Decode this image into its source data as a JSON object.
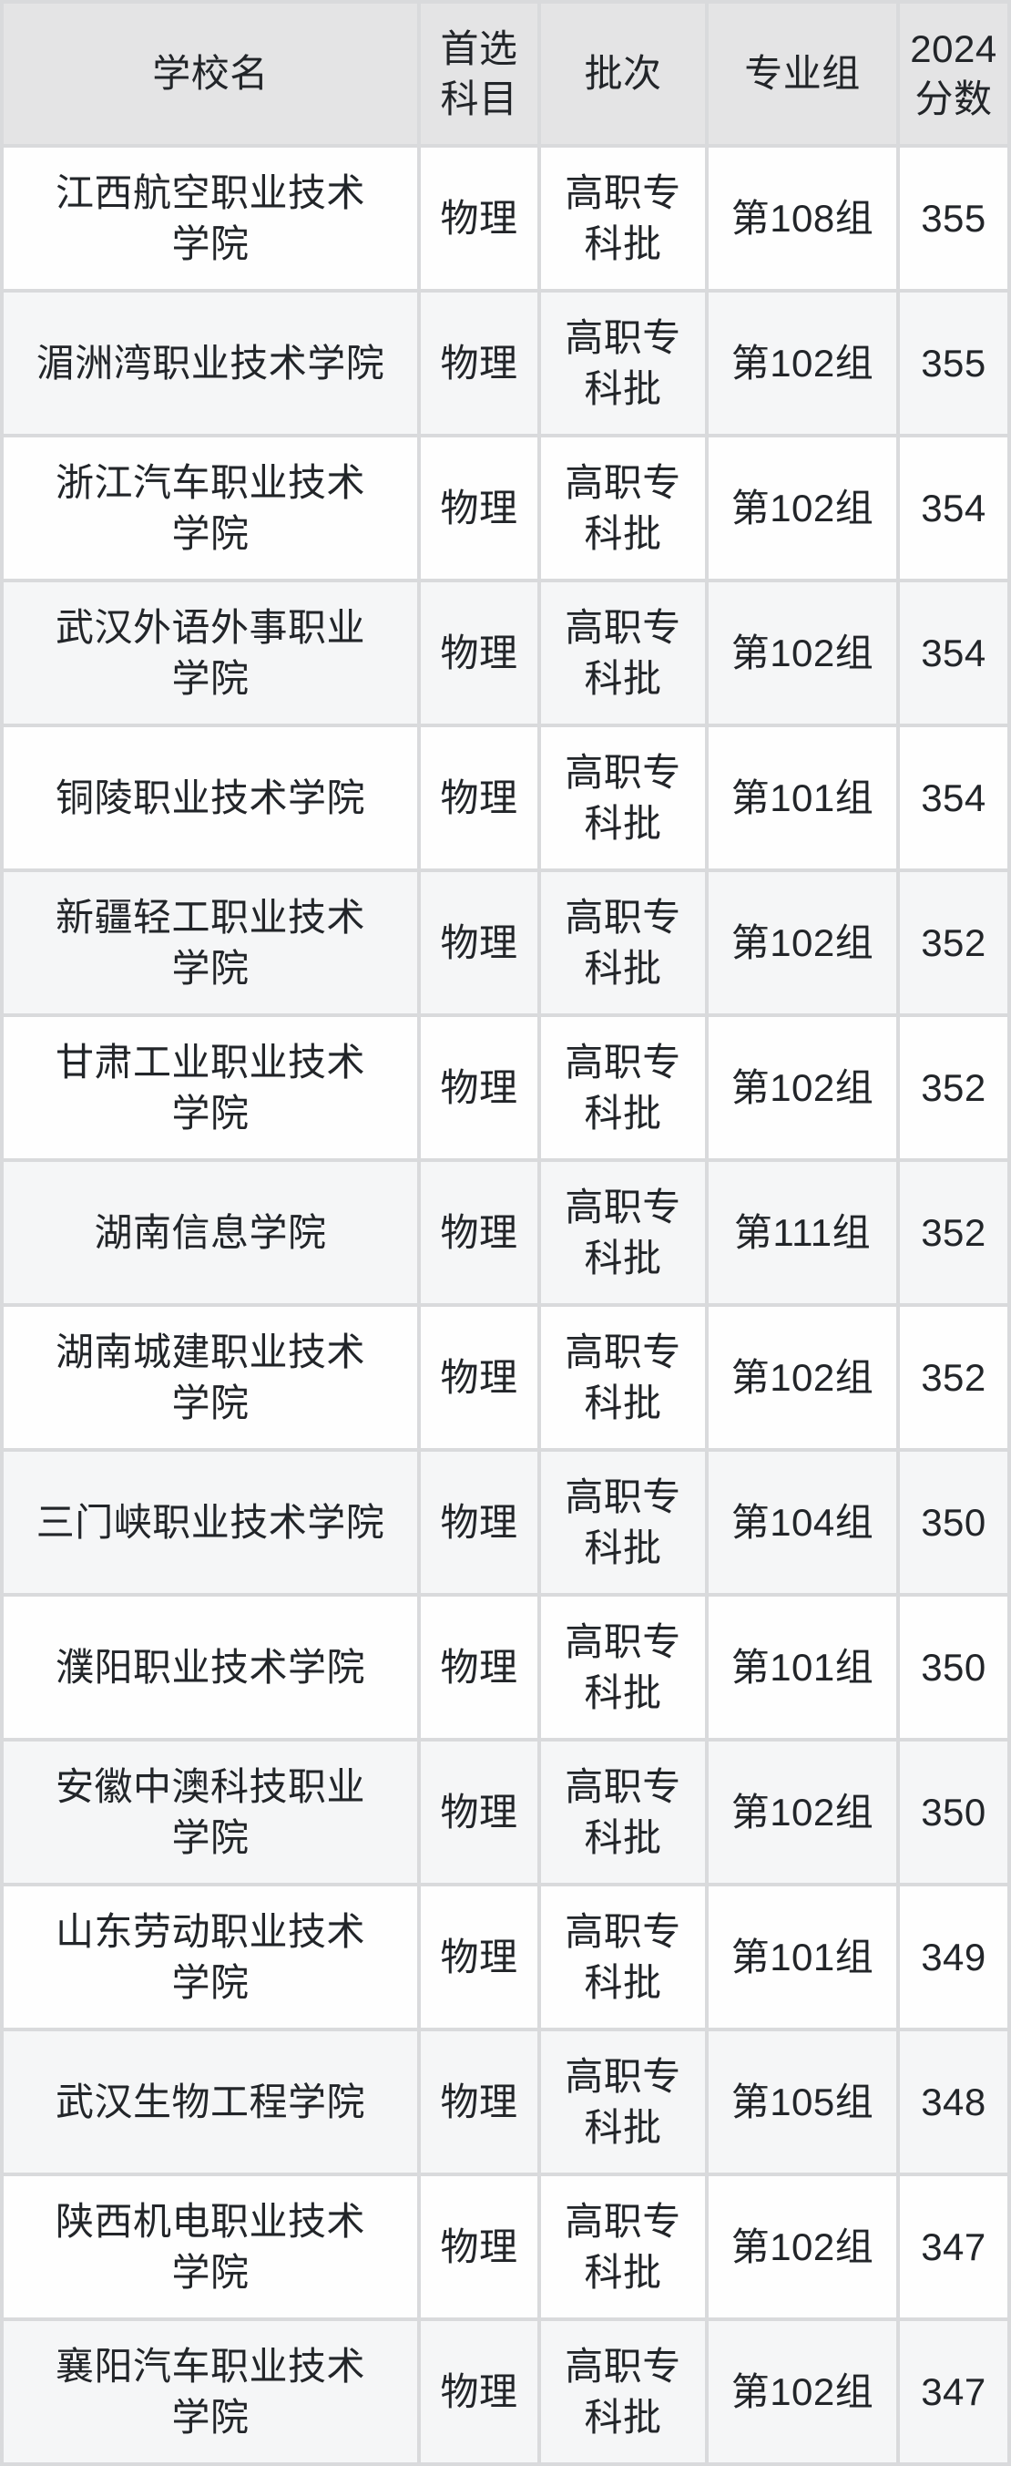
{
  "table": {
    "columns": {
      "school": "学校名",
      "subject": "首选\n科目",
      "batch": "批次",
      "group": "专业组",
      "score": "2024\n分数"
    },
    "rows": [
      {
        "school": "江西航空职业技术\n学院",
        "subject": "物理",
        "batch": "高职专\n科批",
        "group": "第108组",
        "score": "355"
      },
      {
        "school": "湄洲湾职业技术学院",
        "subject": "物理",
        "batch": "高职专\n科批",
        "group": "第102组",
        "score": "355"
      },
      {
        "school": "浙江汽车职业技术\n学院",
        "subject": "物理",
        "batch": "高职专\n科批",
        "group": "第102组",
        "score": "354"
      },
      {
        "school": "武汉外语外事职业\n学院",
        "subject": "物理",
        "batch": "高职专\n科批",
        "group": "第102组",
        "score": "354"
      },
      {
        "school": "铜陵职业技术学院",
        "subject": "物理",
        "batch": "高职专\n科批",
        "group": "第101组",
        "score": "354"
      },
      {
        "school": "新疆轻工职业技术\n学院",
        "subject": "物理",
        "batch": "高职专\n科批",
        "group": "第102组",
        "score": "352"
      },
      {
        "school": "甘肃工业职业技术\n学院",
        "subject": "物理",
        "batch": "高职专\n科批",
        "group": "第102组",
        "score": "352"
      },
      {
        "school": "湖南信息学院",
        "subject": "物理",
        "batch": "高职专\n科批",
        "group": "第111组",
        "score": "352"
      },
      {
        "school": "湖南城建职业技术\n学院",
        "subject": "物理",
        "batch": "高职专\n科批",
        "group": "第102组",
        "score": "352"
      },
      {
        "school": "三门峡职业技术学院",
        "subject": "物理",
        "batch": "高职专\n科批",
        "group": "第104组",
        "score": "350"
      },
      {
        "school": "濮阳职业技术学院",
        "subject": "物理",
        "batch": "高职专\n科批",
        "group": "第101组",
        "score": "350"
      },
      {
        "school": "安徽中澳科技职业\n学院",
        "subject": "物理",
        "batch": "高职专\n科批",
        "group": "第102组",
        "score": "350"
      },
      {
        "school": "山东劳动职业技术\n学院",
        "subject": "物理",
        "batch": "高职专\n科批",
        "group": "第101组",
        "score": "349"
      },
      {
        "school": "武汉生物工程学院",
        "subject": "物理",
        "batch": "高职专\n科批",
        "group": "第105组",
        "score": "348"
      },
      {
        "school": "陕西机电职业技术\n学院",
        "subject": "物理",
        "batch": "高职专\n科批",
        "group": "第102组",
        "score": "347"
      },
      {
        "school": "襄阳汽车职业技术\n学院",
        "subject": "物理",
        "batch": "高职专\n科批",
        "group": "第102组",
        "score": "347"
      }
    ]
  },
  "colors": {
    "header_bg": "#e4e4e5",
    "row_bg": "#fefefe",
    "row_alt_bg": "#f5f6f7",
    "divider": "#d9dadc",
    "text": "#222529"
  }
}
